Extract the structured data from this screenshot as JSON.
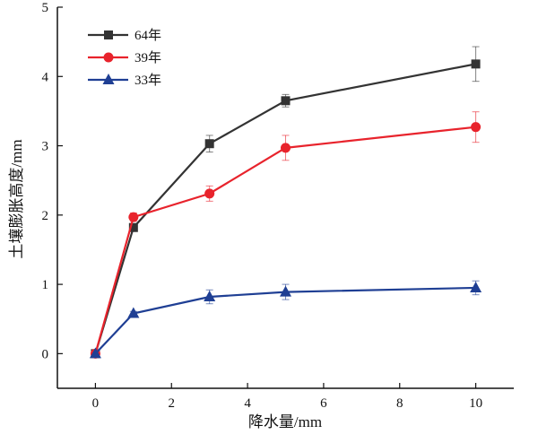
{
  "chart_data": {
    "type": "line",
    "xlabel": "降水量/mm",
    "ylabel": "土壤膨胀高度/mm",
    "xlim": [
      -1,
      11
    ],
    "ylim": [
      -0.5,
      5
    ],
    "xticks": [
      0,
      2,
      4,
      6,
      8,
      10
    ],
    "yticks": [
      0,
      1,
      2,
      3,
      4,
      5
    ],
    "grid": false,
    "legend_position": "top-left",
    "x": [
      0,
      1,
      3,
      5,
      10
    ],
    "series": [
      {
        "name": "64年",
        "color": "#333333",
        "marker": "square",
        "values": [
          0,
          1.82,
          3.03,
          3.65,
          4.18
        ],
        "errors": [
          0,
          0.03,
          0.12,
          0.09,
          0.25
        ]
      },
      {
        "name": "39年",
        "color": "#e8232c",
        "marker": "circle",
        "values": [
          0,
          1.97,
          2.31,
          2.97,
          3.27
        ],
        "errors": [
          0,
          0.06,
          0.11,
          0.18,
          0.22
        ]
      },
      {
        "name": "33年",
        "color": "#1f3f94",
        "marker": "triangle",
        "values": [
          0,
          0.58,
          0.82,
          0.89,
          0.95
        ],
        "errors": [
          0,
          0.03,
          0.1,
          0.11,
          0.1
        ]
      }
    ]
  }
}
